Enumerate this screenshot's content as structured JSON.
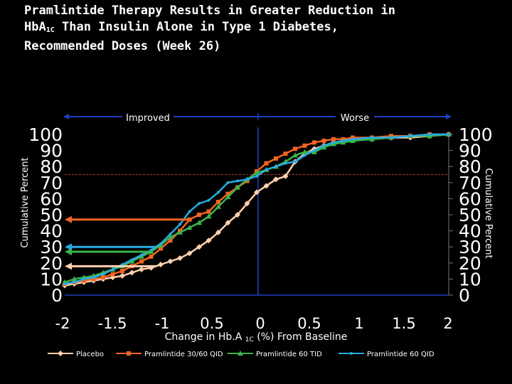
{
  "title": {
    "line1": "Pramlintide Therapy Results in Greater Reduction in",
    "line2_pre": "HbA",
    "line2_sub": "1C",
    "line2_post": " Than Insulin Alone in Type 1 Diabetes,",
    "line3": "Recommended Doses (Week 26)"
  },
  "colors": {
    "background": "#000000",
    "placebo": "#FFD0B0",
    "pram_30_60_qid": "#F26522",
    "pram_60_tid": "#39B54A",
    "pram_60_qid": "#29ABE2",
    "direction_arrow": "#1F3FBF",
    "reference_line": "#C0392B"
  },
  "chart_data": {
    "type": "line",
    "direction_labels": {
      "left": "Improved",
      "right": "Worse"
    },
    "xlabel": {
      "pre": "Change in Hb.A ",
      "sub": "1C",
      "post": " (%) From Baseline"
    },
    "ylabel_left": "Cumulative Percent ",
    "ylabel_right": "Cumulative Percent ",
    "xlim": [
      -2,
      2
    ],
    "ylim": [
      0,
      100
    ],
    "x_tick_labels": [
      "-2",
      "-1.5",
      "-1",
      "0.5",
      "0",
      "0.5",
      "1",
      "1.5",
      "2"
    ],
    "y_tick_labels_left": [
      "0",
      "10",
      "20",
      "30",
      "40",
      "50",
      "60",
      "70",
      "80",
      "90",
      "100"
    ],
    "y_tick_labels_right": [
      "100",
      "90",
      "80",
      "70",
      "60",
      "50",
      "40",
      "30",
      "20",
      "10",
      "0"
    ],
    "grid": false,
    "legend_position": "bottom",
    "reference_line_y": 75,
    "series": [
      {
        "name": "Placebo",
        "marker": "diamond",
        "x": [
          -2.0,
          -1.9,
          -1.8,
          -1.7,
          -1.6,
          -1.5,
          -1.4,
          -1.3,
          -1.2,
          -1.1,
          -1.0,
          -0.9,
          -0.8,
          -0.7,
          -0.6,
          -0.5,
          -0.4,
          -0.3,
          -0.2,
          -0.1,
          0.0,
          0.1,
          0.2,
          0.3,
          0.4,
          0.5,
          0.6,
          0.7,
          0.8,
          0.9,
          1.0,
          1.2,
          1.4,
          1.6,
          1.8,
          2.0
        ],
        "y": [
          6,
          7,
          8,
          9,
          10,
          11,
          12,
          14,
          16,
          17,
          19,
          21,
          23,
          26,
          30,
          34,
          39,
          45,
          50,
          57,
          64,
          68,
          72,
          74,
          83,
          88,
          91,
          93,
          95,
          96,
          97,
          97,
          98,
          98,
          99,
          100
        ],
        "arrow_y": 18
      },
      {
        "name": "Pramlintide 30/60 QID",
        "marker": "square",
        "x": [
          -2.0,
          -1.9,
          -1.8,
          -1.7,
          -1.6,
          -1.5,
          -1.4,
          -1.3,
          -1.2,
          -1.1,
          -1.0,
          -0.9,
          -0.8,
          -0.7,
          -0.6,
          -0.5,
          -0.4,
          -0.3,
          -0.2,
          -0.1,
          0.0,
          0.1,
          0.2,
          0.3,
          0.4,
          0.5,
          0.6,
          0.7,
          0.8,
          0.9,
          1.0,
          1.2,
          1.4,
          1.6,
          1.8,
          2.0
        ],
        "y": [
          7,
          8,
          9,
          10,
          11,
          13,
          15,
          18,
          21,
          24,
          29,
          34,
          40,
          47,
          50,
          52,
          58,
          63,
          67,
          71,
          77,
          82,
          85,
          88,
          91,
          93,
          95,
          96,
          97,
          97,
          98,
          98,
          99,
          99,
          100,
          100
        ],
        "arrow_y": 47
      },
      {
        "name": "Pramlintide 60 TID",
        "marker": "triangle",
        "x": [
          -2.0,
          -1.9,
          -1.8,
          -1.7,
          -1.6,
          -1.5,
          -1.4,
          -1.3,
          -1.2,
          -1.1,
          -1.0,
          -0.9,
          -0.8,
          -0.7,
          -0.6,
          -0.5,
          -0.4,
          -0.3,
          -0.2,
          -0.1,
          0.0,
          0.1,
          0.2,
          0.3,
          0.4,
          0.5,
          0.6,
          0.7,
          0.8,
          0.9,
          1.0,
          1.2,
          1.4,
          1.6,
          1.8,
          2.0
        ],
        "y": [
          8,
          10,
          11,
          12,
          14,
          16,
          18,
          21,
          24,
          27,
          31,
          36,
          39,
          42,
          45,
          49,
          55,
          61,
          67,
          72,
          76,
          78,
          80,
          83,
          87,
          89,
          89,
          92,
          94,
          95,
          96,
          97,
          98,
          99,
          99,
          100
        ],
        "arrow_y": 27
      },
      {
        "name": "Pramlintide 60 QID",
        "marker": "circle",
        "x": [
          -2.0,
          -1.9,
          -1.8,
          -1.7,
          -1.6,
          -1.5,
          -1.4,
          -1.3,
          -1.2,
          -1.1,
          -1.0,
          -0.9,
          -0.8,
          -0.7,
          -0.6,
          -0.5,
          -0.4,
          -0.3,
          -0.2,
          -0.1,
          0.0,
          0.1,
          0.2,
          0.3,
          0.4,
          0.5,
          0.6,
          0.7,
          0.8,
          0.9,
          1.0,
          1.2,
          1.4,
          1.6,
          1.8,
          2.0
        ],
        "y": [
          7,
          8,
          10,
          11,
          13,
          16,
          19,
          22,
          25,
          28,
          32,
          38,
          44,
          52,
          57,
          59,
          64,
          70,
          71,
          72,
          74,
          78,
          80,
          82,
          83,
          87,
          90,
          93,
          95,
          96,
          97,
          98,
          98,
          99,
          100,
          100
        ],
        "arrow_y": 30
      }
    ]
  }
}
